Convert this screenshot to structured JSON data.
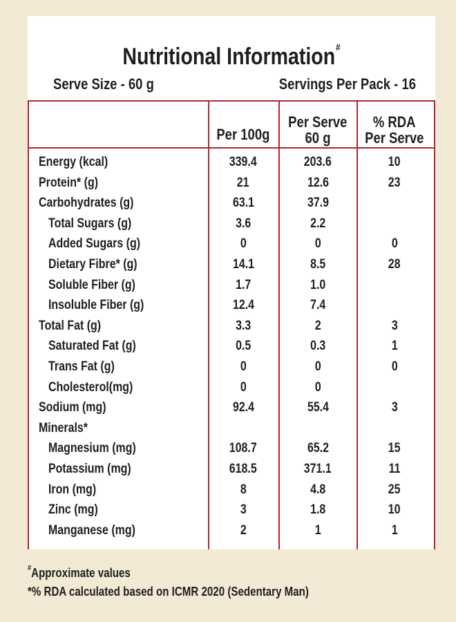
{
  "title": "Nutritional Information",
  "title_mark": "#",
  "serve_size": "Serve Size - 60 g",
  "servings_per_pack": "Servings Per Pack - 16",
  "columns": {
    "per100g": "Per 100g",
    "per_serve_line1": "Per Serve",
    "per_serve_line2": "60 g",
    "rda_line1": "% RDA",
    "rda_line2": "Per Serve"
  },
  "rows": [
    {
      "label": "Energy (kcal)",
      "indent": false,
      "per100g": "339.4",
      "perServe": "203.6",
      "rda": "10"
    },
    {
      "label": "Protein* (g)",
      "indent": false,
      "per100g": "21",
      "perServe": "12.6",
      "rda": "23"
    },
    {
      "label": "Carbohydrates (g)",
      "indent": false,
      "per100g": "63.1",
      "perServe": "37.9",
      "rda": ""
    },
    {
      "label": "Total Sugars (g)",
      "indent": true,
      "per100g": "3.6",
      "perServe": "2.2",
      "rda": ""
    },
    {
      "label": "Added Sugars (g)",
      "indent": true,
      "per100g": "0",
      "perServe": "0",
      "rda": "0"
    },
    {
      "label": "Dietary Fibre* (g)",
      "indent": true,
      "per100g": "14.1",
      "perServe": "8.5",
      "rda": "28"
    },
    {
      "label": "Soluble Fiber (g)",
      "indent": true,
      "per100g": "1.7",
      "perServe": "1.0",
      "rda": ""
    },
    {
      "label": "Insoluble Fiber (g)",
      "indent": true,
      "per100g": "12.4",
      "perServe": "7.4",
      "rda": ""
    },
    {
      "label": "Total Fat (g)",
      "indent": false,
      "per100g": "3.3",
      "perServe": "2",
      "rda": "3"
    },
    {
      "label": "Saturated Fat (g)",
      "indent": true,
      "per100g": "0.5",
      "perServe": "0.3",
      "rda": "1"
    },
    {
      "label": "Trans Fat (g)",
      "indent": true,
      "per100g": "0",
      "perServe": "0",
      "rda": "0"
    },
    {
      "label": "Cholesterol(mg)",
      "indent": true,
      "per100g": "0",
      "perServe": "0",
      "rda": ""
    },
    {
      "label": "Sodium (mg)",
      "indent": false,
      "per100g": "92.4",
      "perServe": "55.4",
      "rda": "3"
    },
    {
      "label": "Minerals*",
      "indent": false,
      "per100g": "",
      "perServe": "",
      "rda": ""
    },
    {
      "label": "Magnesium (mg)",
      "indent": true,
      "per100g": "108.7",
      "perServe": "65.2",
      "rda": "15"
    },
    {
      "label": "Potassium (mg)",
      "indent": true,
      "per100g": "618.5",
      "perServe": "371.1",
      "rda": "11"
    },
    {
      "label": "Iron (mg)",
      "indent": true,
      "per100g": "8",
      "perServe": "4.8",
      "rda": "25"
    },
    {
      "label": "Zinc (mg)",
      "indent": true,
      "per100g": "3",
      "perServe": "1.8",
      "rda": "10"
    },
    {
      "label": "Manganese (mg)",
      "indent": true,
      "per100g": "2",
      "perServe": "1",
      "rda": "1"
    }
  ],
  "footnotes": {
    "mark1": "#",
    "note1": "Approximate values",
    "note2": "*% RDA calculated based on ICMR 2020 (Sedentary Man)"
  },
  "colors": {
    "background": "#f3ead5",
    "panel": "#ffffff",
    "rule": "#b3262f",
    "text": "#1e1e1e"
  }
}
